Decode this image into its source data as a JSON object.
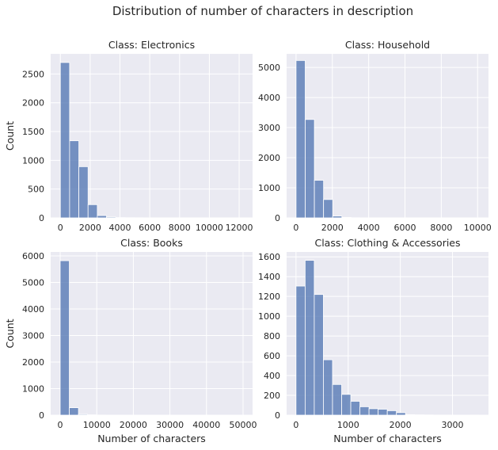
{
  "suptitle": "Distribution of number of characters in description",
  "chart_data": [
    {
      "type": "bar",
      "title": "Class: Electronics",
      "xlabel": "",
      "ylabel": "Count",
      "xlim": [
        -650,
        12900
      ],
      "ylim": [
        0,
        2850
      ],
      "xticks": [
        0,
        2000,
        4000,
        6000,
        8000,
        10000,
        12000
      ],
      "yticks": [
        0,
        500,
        1000,
        1500,
        2000,
        2500
      ],
      "bin_edges": [
        0,
        620,
        1240,
        1860,
        2480,
        3100,
        3720,
        4340,
        4960,
        5580,
        6200,
        6820,
        7440,
        8060,
        8680,
        9300,
        9920,
        10540,
        11160,
        11780,
        12400
      ],
      "values": [
        2700,
        1340,
        890,
        230,
        40,
        15,
        5,
        3,
        2,
        1,
        1,
        0,
        0,
        0,
        0,
        0,
        0,
        0,
        0,
        1
      ]
    },
    {
      "type": "bar",
      "title": "Class: Household",
      "xlabel": "",
      "ylabel": "",
      "xlim": [
        -520,
        10600
      ],
      "ylim": [
        0,
        5450
      ],
      "xticks": [
        0,
        2000,
        4000,
        6000,
        8000,
        10000
      ],
      "yticks": [
        0,
        1000,
        2000,
        3000,
        4000,
        5000
      ],
      "bin_edges": [
        0,
        505,
        1010,
        1515,
        2020,
        2525,
        3030,
        3535,
        4040,
        4545,
        5050,
        5555,
        6060,
        6565,
        7070,
        7575,
        8080,
        8585,
        9090,
        9595,
        10100
      ],
      "values": [
        5230,
        3270,
        1250,
        610,
        60,
        15,
        5,
        3,
        2,
        1,
        1,
        0,
        0,
        0,
        0,
        0,
        0,
        0,
        0,
        1
      ]
    },
    {
      "type": "bar",
      "title": "Class: Books",
      "xlabel": "Number of characters",
      "ylabel": "Count",
      "xlim": [
        -2600,
        52600
      ],
      "ylim": [
        0,
        6150
      ],
      "xticks": [
        0,
        10000,
        20000,
        30000,
        40000,
        50000
      ],
      "yticks": [
        0,
        1000,
        2000,
        3000,
        4000,
        5000,
        6000
      ],
      "bin_edges": [
        0,
        2500,
        5000,
        7500,
        10000,
        12500,
        15000,
        17500,
        20000,
        22500,
        25000,
        27500,
        30000,
        32500,
        35000,
        37500,
        40000,
        42500,
        45000,
        47500,
        50000
      ],
      "values": [
        5820,
        280,
        30,
        10,
        4,
        2,
        1,
        1,
        0,
        0,
        0,
        0,
        0,
        0,
        0,
        0,
        0,
        0,
        0,
        1
      ]
    },
    {
      "type": "bar",
      "title": "Class: Clothing & Accessories",
      "xlabel": "Number of characters",
      "ylabel": "",
      "xlim": [
        -180,
        3690
      ],
      "ylim": [
        0,
        1650
      ],
      "xticks": [
        0,
        1000,
        2000,
        3000
      ],
      "yticks": [
        0,
        200,
        400,
        600,
        800,
        1000,
        1200,
        1400,
        1600
      ],
      "bin_edges": [
        0,
        175,
        350,
        525,
        700,
        875,
        1050,
        1225,
        1400,
        1575,
        1750,
        1925,
        2100,
        2275,
        2450,
        2625,
        2800,
        2975,
        3150,
        3325,
        3500
      ],
      "values": [
        1305,
        1565,
        1220,
        560,
        310,
        210,
        140,
        85,
        65,
        60,
        45,
        25,
        5,
        3,
        2,
        1,
        1,
        0,
        0,
        1
      ]
    }
  ]
}
